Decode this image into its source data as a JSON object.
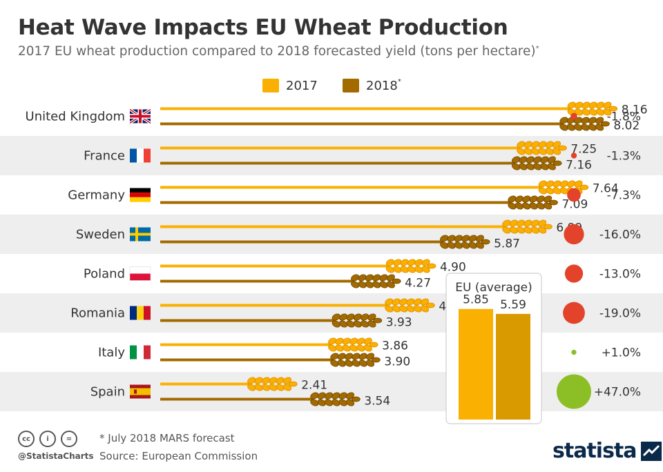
{
  "header": {
    "title": "Heat Wave Impacts EU Wheat Production",
    "subtitle": "2017 EU wheat production compared to 2018 forecasted yield (tons per hectare)",
    "subtitle_mark": "*"
  },
  "legend": {
    "items": [
      {
        "label": "2017",
        "mark": "",
        "color": "#f9b000"
      },
      {
        "label": "2018",
        "mark": "*",
        "color": "#a36a00"
      }
    ]
  },
  "chart_data": [
    {
      "type": "bar",
      "orientation": "horizontal",
      "categories": [
        "United Kingdom",
        "France",
        "Germany",
        "Sweden",
        "Poland",
        "Romania",
        "Italy",
        "Spain"
      ],
      "flags": [
        "uk-flag-icon",
        "france-flag-icon",
        "germany-flag-icon",
        "sweden-flag-icon",
        "poland-flag-icon",
        "romania-flag-icon",
        "italy-flag-icon",
        "spain-flag-icon"
      ],
      "series": [
        {
          "name": "2017",
          "values": [
            8.16,
            7.25,
            7.64,
            6.99,
            4.9,
            4.88,
            3.86,
            2.41
          ],
          "labels": [
            "8.16",
            "7.25",
            "7.64",
            "6.99",
            "4.90",
            "4.88",
            "3.86",
            "2.41"
          ],
          "color": "#f9b000"
        },
        {
          "name": "2018*",
          "values": [
            8.02,
            7.16,
            7.09,
            5.87,
            4.27,
            3.93,
            3.9,
            3.54
          ],
          "labels": [
            "8.02",
            "7.16",
            "7.09",
            "5.87",
            "4.27",
            "3.93",
            "3.90",
            "3.54"
          ],
          "color": "#a36a00"
        }
      ],
      "change": {
        "values": [
          -1.8,
          -1.3,
          -7.3,
          -16.0,
          -13.0,
          -19.0,
          1.0,
          47.0
        ],
        "labels": [
          "-1.8%",
          "-1.3%",
          "-7.3%",
          "-16.0%",
          "-13.0%",
          "-19.0%",
          "+1.0%",
          "+47.0%"
        ],
        "negative_color": "#e2432a",
        "positive_color": "#8cbf26"
      },
      "xlim": [
        0,
        8.5
      ],
      "grid": false
    },
    {
      "type": "bar",
      "title": "EU (average)",
      "categories": [
        "2017",
        "2018"
      ],
      "values": [
        5.85,
        5.59
      ],
      "labels": [
        "5.85",
        "5.59"
      ],
      "colors": [
        "#f9b000",
        "#d99a00"
      ],
      "ylim": [
        0,
        7.3
      ]
    }
  ],
  "footer": {
    "cc_icons": [
      "cc",
      "i",
      "="
    ],
    "handle": "@StatistaCharts",
    "note": "* July 2018 MARS forecast",
    "source": "Source: European Commission",
    "brand": "statista"
  }
}
